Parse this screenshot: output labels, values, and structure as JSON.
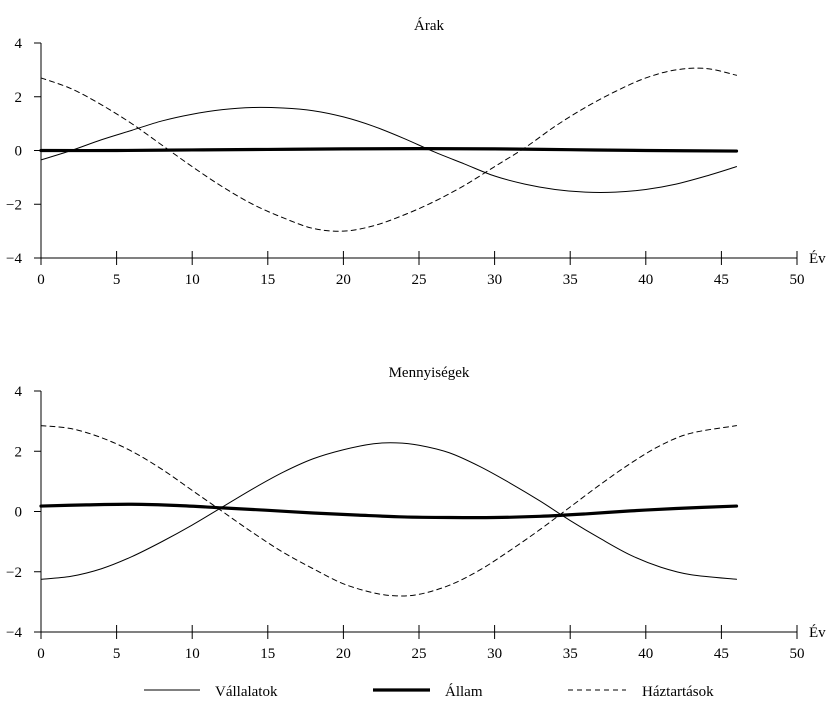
{
  "chart_data": [
    {
      "type": "line",
      "title": "Árak",
      "xlabel": "Év",
      "ylabel": "",
      "xlim": [
        0,
        50
      ],
      "ylim": [
        -4,
        4
      ],
      "xticks": [
        0,
        5,
        10,
        15,
        20,
        25,
        30,
        35,
        40,
        45,
        50
      ],
      "xtick_labels": [
        "0",
        "5",
        "10",
        "15",
        "20",
        "25",
        "30",
        "35",
        "40",
        "45",
        "50"
      ],
      "yticks": [
        4,
        2,
        0,
        -2,
        -4
      ],
      "ytick_labels": [
        "4",
        "2",
        "0",
        "−2",
        "−4"
      ],
      "grid": false,
      "series": [
        {
          "name": "Vállalatok",
          "style": "thin-solid",
          "x": [
            0,
            2,
            4,
            6,
            8,
            10,
            12,
            14,
            16,
            18,
            20,
            22,
            24,
            26,
            28,
            30,
            32,
            34,
            36,
            38,
            40,
            42,
            44,
            46
          ],
          "y": [
            -0.35,
            0.0,
            0.4,
            0.75,
            1.1,
            1.35,
            1.52,
            1.6,
            1.58,
            1.48,
            1.25,
            0.9,
            0.45,
            -0.05,
            -0.5,
            -0.95,
            -1.25,
            -1.45,
            -1.55,
            -1.55,
            -1.45,
            -1.25,
            -0.95,
            -0.6
          ]
        },
        {
          "name": "Állam",
          "style": "thick-solid",
          "x": [
            0,
            5,
            10,
            15,
            20,
            25,
            30,
            35,
            40,
            46
          ],
          "y": [
            0.0,
            0.0,
            0.02,
            0.04,
            0.06,
            0.07,
            0.06,
            0.03,
            0.0,
            -0.02
          ]
        },
        {
          "name": "Háztartások",
          "style": "dashed",
          "x": [
            0,
            2,
            4,
            6,
            8,
            10,
            12,
            14,
            16,
            18,
            20,
            22,
            24,
            26,
            28,
            30,
            32,
            34,
            36,
            38,
            40,
            42,
            44,
            46
          ],
          "y": [
            2.7,
            2.3,
            1.7,
            1.0,
            0.2,
            -0.6,
            -1.35,
            -2.0,
            -2.5,
            -2.9,
            -3.0,
            -2.8,
            -2.4,
            -1.9,
            -1.3,
            -0.6,
            0.1,
            0.9,
            1.6,
            2.2,
            2.7,
            3.0,
            3.05,
            2.8
          ]
        }
      ]
    },
    {
      "type": "line",
      "title": "Mennyiségek",
      "xlabel": "Év",
      "ylabel": "",
      "xlim": [
        0,
        50
      ],
      "ylim": [
        -4,
        4
      ],
      "xticks": [
        0,
        5,
        10,
        15,
        20,
        25,
        30,
        35,
        40,
        45,
        50
      ],
      "xtick_labels": [
        "0",
        "5",
        "10",
        "15",
        "20",
        "25",
        "30",
        "35",
        "40",
        "45",
        "50"
      ],
      "yticks": [
        4,
        2,
        0,
        -2,
        -4
      ],
      "ytick_labels": [
        "4",
        "2",
        "0",
        "−2",
        "−4"
      ],
      "grid": false,
      "series": [
        {
          "name": "Vállalatok",
          "style": "thin-solid",
          "x": [
            0,
            2,
            4,
            6,
            8,
            10,
            12,
            14,
            16,
            18,
            20,
            22,
            23.5,
            25,
            27,
            29,
            31,
            33,
            35,
            37,
            39,
            41,
            43,
            46
          ],
          "y": [
            -2.25,
            -2.15,
            -1.9,
            -1.5,
            -1.0,
            -0.45,
            0.15,
            0.75,
            1.3,
            1.75,
            2.05,
            2.25,
            2.28,
            2.2,
            1.95,
            1.5,
            0.95,
            0.35,
            -0.3,
            -0.9,
            -1.45,
            -1.85,
            -2.1,
            -2.25
          ]
        },
        {
          "name": "Állam",
          "style": "thick-solid",
          "x": [
            0,
            3,
            6,
            9,
            12,
            15,
            18,
            21,
            24,
            27,
            30,
            33,
            36,
            39,
            42,
            46
          ],
          "y": [
            0.18,
            0.22,
            0.24,
            0.2,
            0.12,
            0.04,
            -0.05,
            -0.12,
            -0.18,
            -0.2,
            -0.2,
            -0.16,
            -0.08,
            0.02,
            0.1,
            0.18
          ]
        },
        {
          "name": "Háztartások",
          "style": "dashed",
          "x": [
            0,
            2,
            4,
            6,
            8,
            10,
            12,
            14,
            16,
            18,
            20,
            22,
            23.5,
            25,
            27,
            29,
            31,
            33,
            35,
            37,
            39,
            41,
            43,
            46
          ],
          "y": [
            2.85,
            2.75,
            2.45,
            2.0,
            1.4,
            0.7,
            0.0,
            -0.7,
            -1.35,
            -1.9,
            -2.4,
            -2.7,
            -2.8,
            -2.75,
            -2.45,
            -1.95,
            -1.3,
            -0.6,
            0.15,
            0.9,
            1.6,
            2.2,
            2.6,
            2.85
          ]
        }
      ]
    }
  ],
  "legend": {
    "placement": "bottom",
    "items": [
      {
        "label": "Vállalatok",
        "style": "thin-solid"
      },
      {
        "label": "Állam",
        "style": "thick-solid"
      },
      {
        "label": "Háztartások",
        "style": "dashed"
      }
    ]
  }
}
